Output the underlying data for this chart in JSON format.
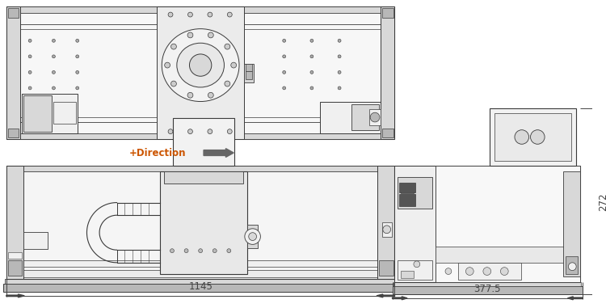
{
  "bg_color": "#ffffff",
  "lc": "#3a3a3a",
  "lc_light": "#888888",
  "lc_dim": "#444444",
  "fc_white": "#ffffff",
  "fc_light": "#f0f0f0",
  "fc_mid": "#d8d8d8",
  "fc_dark": "#b8b8b8",
  "fc_vdark": "#888888",
  "direction_text": "+Direction",
  "direction_color": "#cc5500",
  "arrow_fill": "#666666",
  "dim_color": "#444444",
  "dim_1145": "1145",
  "dim_377": "377.5",
  "dim_272": "272",
  "figsize": [
    7.5,
    3.81
  ],
  "dpi": 100
}
